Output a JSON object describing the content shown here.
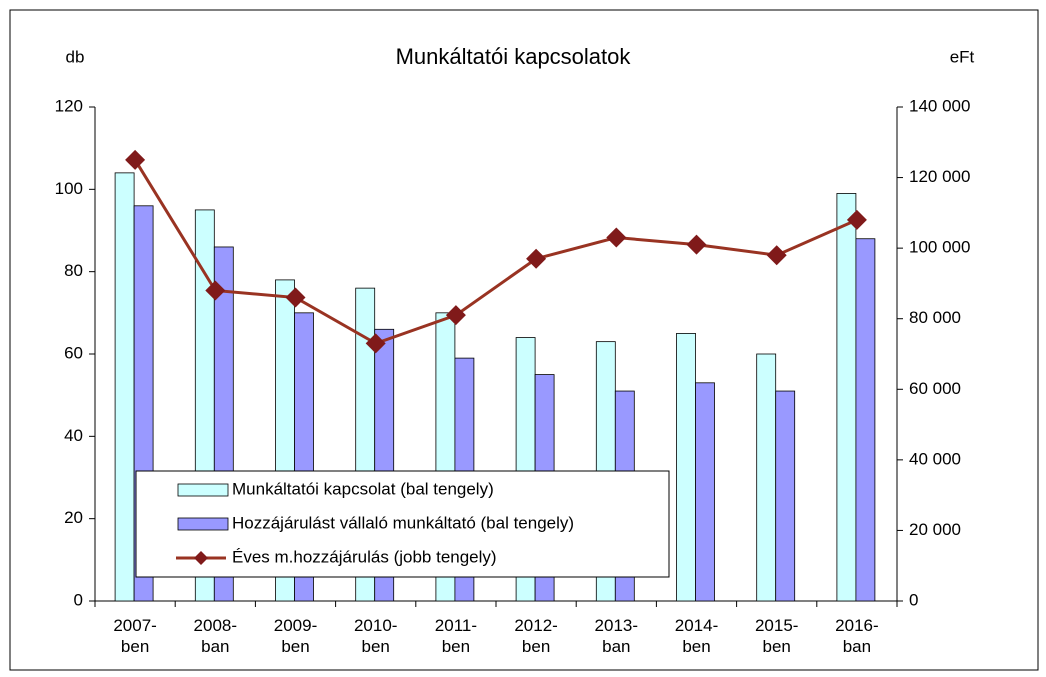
{
  "chart_data": {
    "type": "bar",
    "title": "Munkáltatói kapcsolatok",
    "y_label": "db",
    "y2_label": "eFt",
    "categories": [
      "2007-\nben",
      "2008-\nban",
      "2009-\nben",
      "2010-\nben",
      "2011-\nben",
      "2012-\nben",
      "2013-\nban",
      "2014-\nben",
      "2015-\nben",
      "2016-\nban"
    ],
    "series": [
      {
        "name": "Munkáltatói kapcsolat (bal tengely)",
        "color": "#ccffff",
        "values": [
          104,
          95,
          78,
          76,
          70,
          64,
          63,
          65,
          60,
          99
        ]
      },
      {
        "name": "Hozzájárulást vállaló munkáltató (bal tengely)",
        "color": "#9999ff",
        "values": [
          96,
          86,
          70,
          66,
          59,
          55,
          51,
          53,
          51,
          88
        ]
      },
      {
        "name": "Éves m.hozzájárulás (jobb tengely)",
        "color": "#993322",
        "marker_color": "#801a1a",
        "type": "line",
        "axis": "y2",
        "values": [
          125000,
          88000,
          86000,
          73000,
          81000,
          97000,
          103000,
          101000,
          98000,
          108000
        ]
      }
    ],
    "ylim": [
      0,
      120
    ],
    "yticks": [
      0,
      20,
      40,
      60,
      80,
      100,
      120
    ],
    "y2lim": [
      0,
      140000
    ],
    "y2ticks": [
      {
        "value": 0,
        "label": "0"
      },
      {
        "value": 20000,
        "label": "20 000"
      },
      {
        "value": 40000,
        "label": "40 000"
      },
      {
        "value": 60000,
        "label": "60 000"
      },
      {
        "value": 80000,
        "label": "80 000"
      },
      {
        "value": 100000,
        "label": "100 000"
      },
      {
        "value": 120000,
        "label": "120 000"
      },
      {
        "value": 140000,
        "label": "140 000"
      }
    ],
    "grid": false,
    "legend": "bottom-left"
  }
}
